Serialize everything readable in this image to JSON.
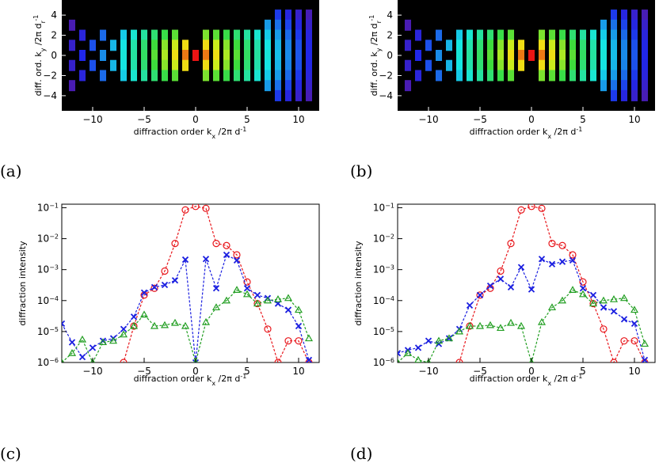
{
  "chart_data": [
    {
      "panel_label": "(a)",
      "type": "heatmap",
      "xlabel": "diffraction order k",
      "xlabel_sub": "x",
      "xlabel_tail": " /2π d",
      "xlabel_sup": "-1",
      "ylabel": "diff. ord. k",
      "ylabel_sub": "y",
      "ylabel_tail": " /2π d",
      "ylabel_sub2": "r",
      "ylabel_sup": "-1",
      "xlim": [
        -13,
        12
      ],
      "ylim": [
        -5.5,
        5.5
      ],
      "xticks": [
        -10,
        -5,
        0,
        5,
        10
      ],
      "yticks": [
        -4,
        -2,
        0,
        2,
        4
      ],
      "background": "#000000",
      "colormap": "rainbow (purple low → red high)",
      "rows": [
        {
          "ky": 4,
          "kx": [
            8,
            9,
            10,
            11
          ]
        },
        {
          "ky": 3,
          "kx": [
            -12,
            7,
            8,
            9,
            10,
            11
          ]
        },
        {
          "ky": 2,
          "kx": [
            -11,
            -9,
            -7,
            -6,
            -5,
            -4,
            -3,
            -2,
            1,
            2,
            3,
            4,
            5,
            6,
            7,
            8,
            9,
            10,
            11
          ]
        },
        {
          "ky": 1,
          "kx": [
            -12,
            -10,
            -8,
            -7,
            -6,
            -5,
            -4,
            -3,
            -2,
            -1,
            1,
            2,
            3,
            4,
            5,
            6,
            7,
            8,
            9,
            10,
            11
          ]
        },
        {
          "ky": 0,
          "kx": [
            -11,
            -9,
            -7,
            -6,
            -5,
            -4,
            -3,
            -2,
            -1,
            0,
            1,
            2,
            3,
            4,
            5,
            6,
            7,
            8,
            9,
            10,
            11
          ]
        },
        {
          "ky": -1,
          "kx": [
            -12,
            -10,
            -8,
            -7,
            -6,
            -5,
            -4,
            -3,
            -2,
            -1,
            1,
            2,
            3,
            4,
            5,
            6,
            7,
            8,
            9,
            10,
            11
          ]
        },
        {
          "ky": -2,
          "kx": [
            -11,
            -9,
            -7,
            -6,
            -5,
            -4,
            -3,
            -2,
            1,
            2,
            3,
            4,
            5,
            6,
            7,
            8,
            9,
            10,
            11
          ]
        },
        {
          "ky": -3,
          "kx": [
            -12,
            7,
            8,
            9,
            10,
            11
          ]
        },
        {
          "ky": -4,
          "kx": [
            8,
            9,
            10,
            11
          ]
        }
      ]
    },
    {
      "panel_label": "(b)",
      "type": "heatmap",
      "xlabel": "diffraction order k",
      "xlabel_sub": "x",
      "xlabel_tail": " /2π d",
      "xlabel_sup": "-1",
      "ylabel": "diff. ord. k",
      "ylabel_sub": "y",
      "ylabel_tail": " /2π d",
      "ylabel_sub2": "r",
      "ylabel_sup": "-1",
      "xlim": [
        -13,
        12
      ],
      "ylim": [
        -5.5,
        5.5
      ],
      "xticks": [
        -10,
        -5,
        0,
        5,
        10
      ],
      "yticks": [
        -4,
        -2,
        0,
        2,
        4
      ],
      "background": "#000000",
      "colormap": "rainbow (purple low → red high)",
      "rows": [
        {
          "ky": 4,
          "kx": [
            8,
            9,
            10,
            11
          ]
        },
        {
          "ky": 3,
          "kx": [
            -12,
            7,
            8,
            9,
            10,
            11
          ]
        },
        {
          "ky": 2,
          "kx": [
            -11,
            -9,
            -7,
            -6,
            -5,
            -4,
            -3,
            -2,
            1,
            2,
            3,
            4,
            5,
            6,
            7,
            8,
            9,
            10,
            11
          ]
        },
        {
          "ky": 1,
          "kx": [
            -12,
            -10,
            -8,
            -7,
            -6,
            -5,
            -4,
            -3,
            -2,
            -1,
            1,
            2,
            3,
            4,
            5,
            6,
            7,
            8,
            9,
            10,
            11
          ]
        },
        {
          "ky": 0,
          "kx": [
            -11,
            -9,
            -7,
            -6,
            -5,
            -4,
            -3,
            -2,
            -1,
            0,
            1,
            2,
            3,
            4,
            5,
            6,
            7,
            8,
            9,
            10,
            11
          ]
        },
        {
          "ky": -1,
          "kx": [
            -12,
            -10,
            -8,
            -7,
            -6,
            -5,
            -4,
            -3,
            -2,
            -1,
            1,
            2,
            3,
            4,
            5,
            6,
            7,
            8,
            9,
            10,
            11
          ]
        },
        {
          "ky": -2,
          "kx": [
            -11,
            -9,
            -7,
            -6,
            -5,
            -4,
            -3,
            -2,
            1,
            2,
            3,
            4,
            5,
            6,
            7,
            8,
            9,
            10,
            11
          ]
        },
        {
          "ky": -3,
          "kx": [
            -12,
            7,
            8,
            9,
            10,
            11
          ]
        },
        {
          "ky": -4,
          "kx": [
            8,
            9,
            10,
            11
          ]
        }
      ]
    },
    {
      "panel_label": "(c)",
      "type": "line",
      "yscale": "log",
      "xlabel": "diffraction order k",
      "xlabel_sub": "x",
      "xlabel_tail": " /2π d",
      "xlabel_sup": "-1",
      "ylabel": "diffraction intensity",
      "xlim": [
        -13,
        12
      ],
      "ylim": [
        1e-06,
        0.13
      ],
      "xticks": [
        -10,
        -5,
        0,
        5,
        10
      ],
      "yticks": [
        "10^-6",
        "10^-5",
        "10^-4",
        "10^-3",
        "10^-2",
        "10^-1"
      ],
      "series": [
        {
          "color": "#e8161b",
          "marker": "circle",
          "x": [
            -8,
            -7,
            -6,
            -5,
            -4,
            -3,
            -2,
            -1,
            0,
            1,
            2,
            3,
            4,
            5,
            6,
            7,
            8,
            9,
            10,
            11
          ],
          "y": [
            1e-07,
            1e-06,
            1.5e-05,
            0.00015,
            0.00025,
            0.0009,
            0.007,
            0.085,
            0.11,
            0.095,
            0.007,
            0.006,
            0.003,
            0.0004,
            8e-05,
            1.2e-05,
            1e-06,
            5e-06,
            5e-06,
            1e-06
          ]
        },
        {
          "color": "#1a1ee0",
          "marker": "cross",
          "x": [
            -13,
            -12,
            -11,
            -10,
            -9,
            -8,
            -7,
            -6,
            -5,
            -4,
            -3,
            -2,
            -1,
            0,
            1,
            2,
            3,
            4,
            5,
            6,
            7,
            8,
            9,
            10,
            11
          ],
          "y": [
            1.8e-05,
            4.5e-06,
            1.5e-06,
            3e-06,
            5e-06,
            6e-06,
            1.2e-05,
            3e-05,
            0.00018,
            0.00027,
            0.00032,
            0.00045,
            0.0021,
            1e-06,
            0.0022,
            0.00025,
            0.003,
            0.002,
            0.00025,
            0.00015,
            0.00012,
            8e-05,
            5e-05,
            1.5e-05,
            1.2e-06
          ]
        },
        {
          "color": "#239f23",
          "marker": "triangle",
          "x": [
            -13,
            -12,
            -11,
            -10,
            -9,
            -8,
            -7,
            -6,
            -5,
            -4,
            -3,
            -2,
            -1,
            0,
            1,
            2,
            3,
            4,
            5,
            6,
            7,
            8,
            9,
            10,
            11
          ],
          "y": [
            1e-06,
            2e-06,
            5.5e-06,
            1e-06,
            4.5e-06,
            5e-06,
            8e-06,
            1.5e-05,
            3.5e-05,
            1.5e-05,
            1.6e-05,
            1.9e-05,
            1.5e-05,
            1e-06,
            2e-05,
            6e-05,
            0.0001,
            0.00022,
            0.00016,
            8e-05,
            0.0001,
            0.00011,
            0.00012,
            5e-05,
            6e-06
          ]
        }
      ]
    },
    {
      "panel_label": "(d)",
      "type": "line",
      "yscale": "log",
      "xlabel": "diffraction order k",
      "xlabel_sub": "x",
      "xlabel_tail": " /2π d",
      "xlabel_sup": "-1",
      "ylabel": "diffraction intensity",
      "xlim": [
        -13,
        12
      ],
      "ylim": [
        1e-06,
        0.13
      ],
      "xticks": [
        -10,
        -5,
        0,
        5,
        10
      ],
      "yticks": [
        "10^-6",
        "10^-5",
        "10^-4",
        "10^-3",
        "10^-2",
        "10^-1"
      ],
      "series": [
        {
          "color": "#e8161b",
          "marker": "circle",
          "x": [
            -7,
            -6,
            -5,
            -4,
            -3,
            -2,
            -1,
            0,
            1,
            2,
            3,
            4,
            5,
            6,
            7,
            8,
            9,
            10,
            11
          ],
          "y": [
            1e-06,
            1.5e-05,
            0.00015,
            0.00025,
            0.0009,
            0.007,
            0.085,
            0.11,
            0.095,
            0.007,
            0.006,
            0.003,
            0.0004,
            8e-05,
            1.2e-05,
            1e-06,
            5e-06,
            5e-06,
            1e-06
          ]
        },
        {
          "color": "#1a1ee0",
          "marker": "cross",
          "x": [
            -13,
            -12,
            -11,
            -10,
            -9,
            -8,
            -7,
            -6,
            -5,
            -4,
            -3,
            -2,
            -1,
            0,
            1,
            2,
            3,
            4,
            5,
            6,
            7,
            8,
            9,
            10,
            11
          ],
          "y": [
            2e-06,
            2.5e-06,
            3e-06,
            5e-06,
            4e-06,
            6e-06,
            1.2e-05,
            7e-05,
            0.00015,
            0.0003,
            0.0005,
            0.00027,
            0.0012,
            0.00023,
            0.0022,
            0.0015,
            0.0018,
            0.002,
            0.00025,
            0.00015,
            6e-05,
            4.5e-05,
            2.5e-05,
            1.8e-05,
            1.2e-06
          ]
        },
        {
          "color": "#239f23",
          "marker": "triangle",
          "x": [
            -13,
            -12,
            -11,
            -10,
            -9,
            -8,
            -7,
            -6,
            -5,
            -4,
            -3,
            -2,
            -1,
            0,
            1,
            2,
            3,
            4,
            5,
            6,
            7,
            8,
            9,
            10,
            11
          ],
          "y": [
            1e-06,
            2e-06,
            1.2e-06,
            1e-06,
            5e-06,
            6e-06,
            1e-05,
            1.5e-05,
            1.5e-05,
            1.6e-05,
            1.3e-05,
            1.9e-05,
            1.5e-05,
            1e-06,
            2e-05,
            6e-05,
            0.0001,
            0.00022,
            0.00016,
            8e-05,
            0.0001,
            0.00011,
            0.00012,
            5e-05,
            4e-06
          ]
        }
      ]
    }
  ]
}
